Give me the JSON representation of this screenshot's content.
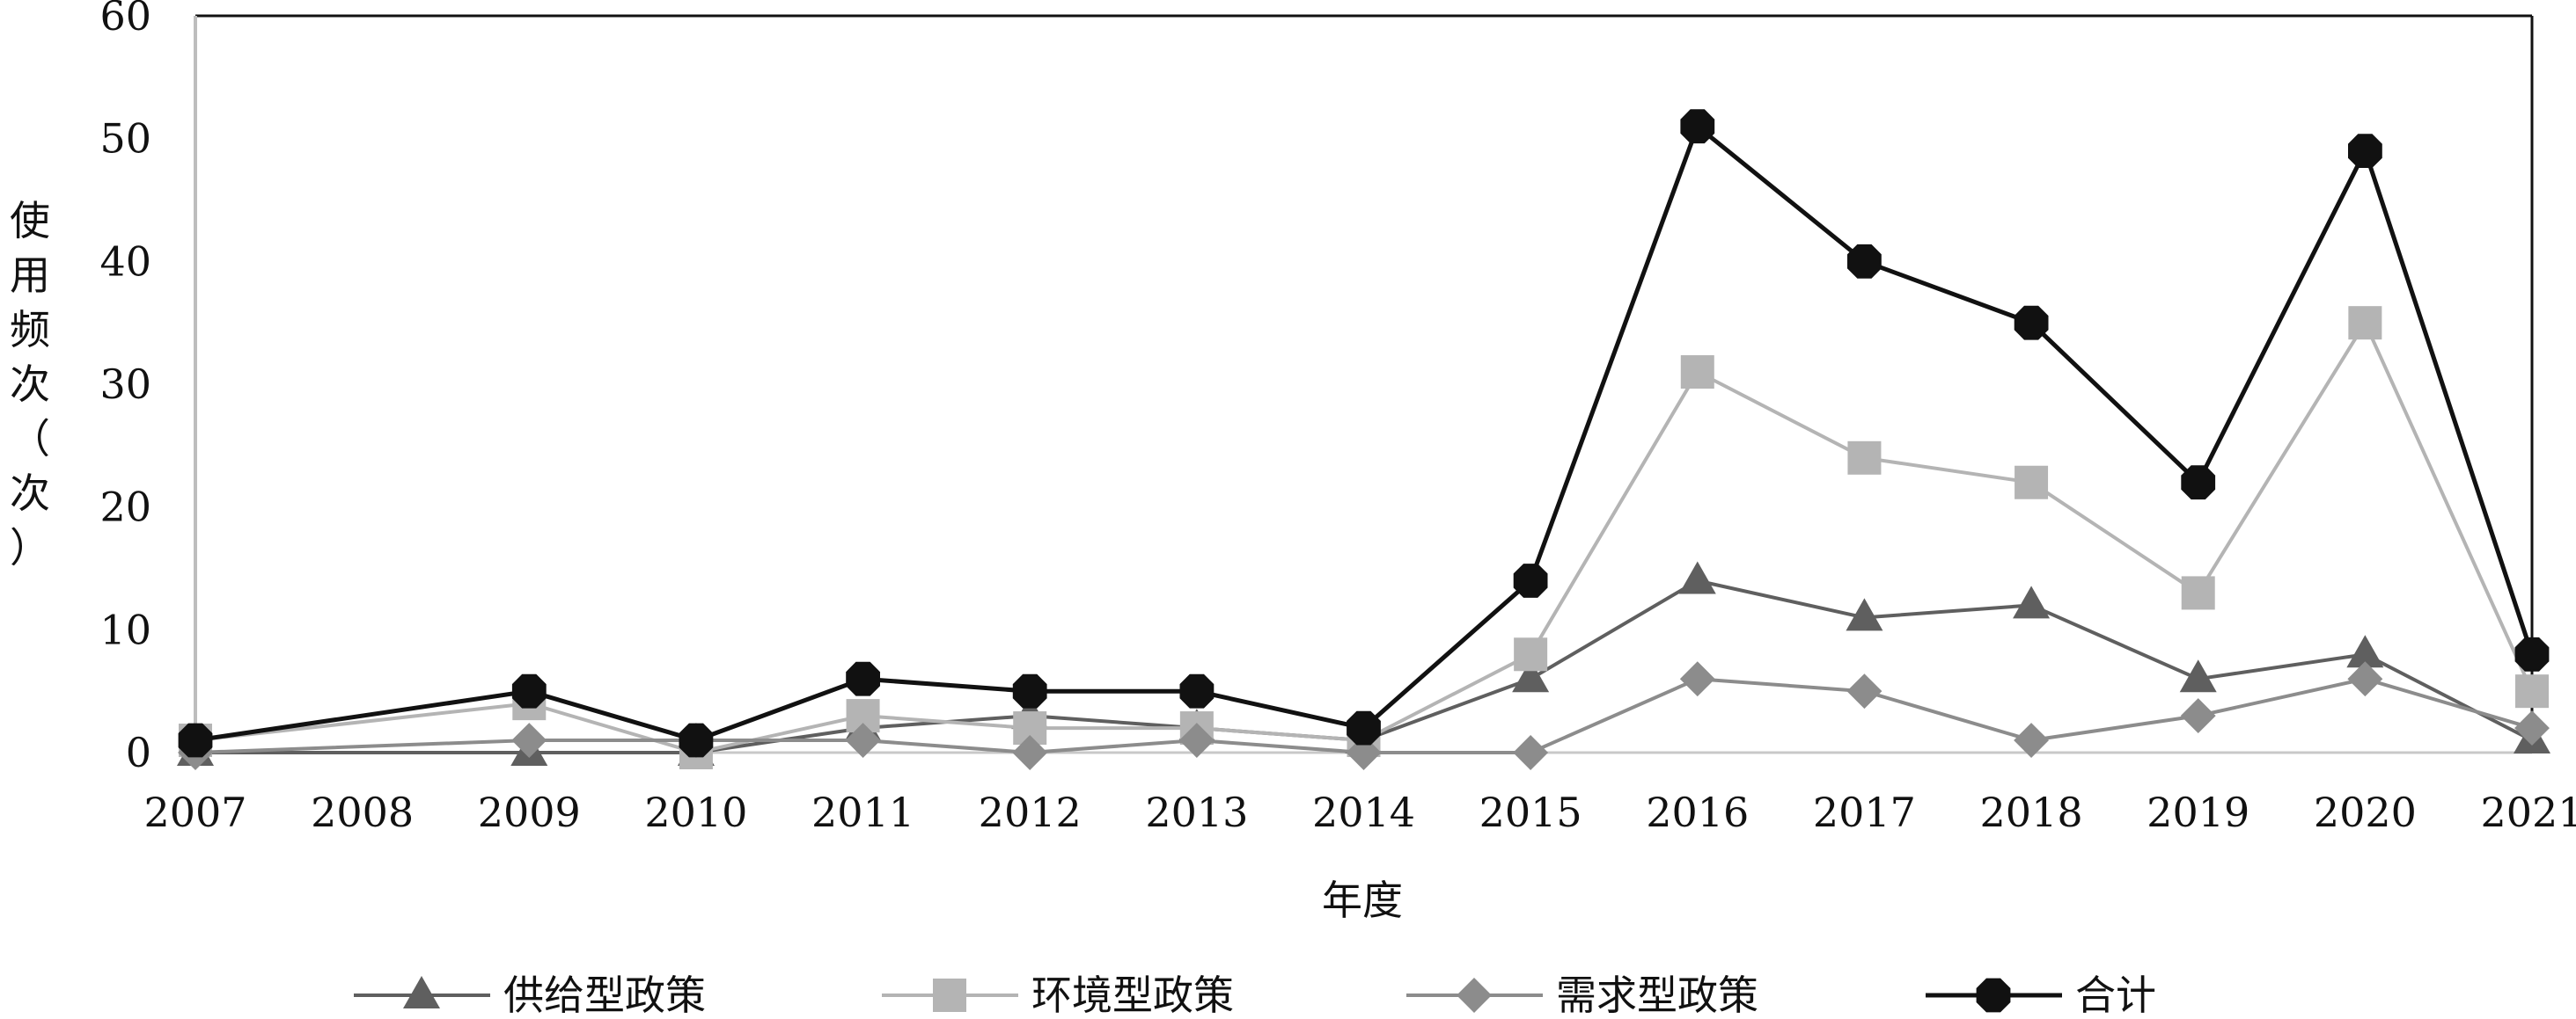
{
  "chart_data": {
    "type": "line",
    "title": "",
    "xlabel": "年度",
    "ylabel": "使用频次（次）",
    "ylim": [
      0,
      60
    ],
    "yticks": [
      0,
      10,
      20,
      30,
      40,
      50,
      60
    ],
    "grid": false,
    "legend_position": "bottom",
    "x": [
      "2007",
      "2008",
      "2009",
      "2010",
      "2011",
      "2012",
      "2013",
      "2014",
      "2015",
      "2016",
      "2017",
      "2018",
      "2019",
      "2020",
      "2021"
    ],
    "series": [
      {
        "name": "供给型政策",
        "color": "#5f5f5f",
        "marker": "triangle",
        "points": [
          [
            0,
            0
          ],
          [
            2,
            0
          ],
          [
            3,
            0
          ],
          [
            4,
            2
          ],
          [
            5,
            3
          ],
          [
            6,
            2
          ],
          [
            7,
            1
          ],
          [
            8,
            6
          ],
          [
            9,
            14
          ],
          [
            10,
            11
          ],
          [
            11,
            12
          ],
          [
            12,
            6
          ],
          [
            13,
            8
          ],
          [
            14,
            1
          ]
        ]
      },
      {
        "name": "环境型政策",
        "color": "#b4b4b4",
        "marker": "square",
        "points": [
          [
            0,
            1
          ],
          [
            2,
            4
          ],
          [
            3,
            0
          ],
          [
            4,
            3
          ],
          [
            5,
            2
          ],
          [
            6,
            2
          ],
          [
            7,
            1
          ],
          [
            8,
            8
          ],
          [
            9,
            31
          ],
          [
            10,
            24
          ],
          [
            11,
            22
          ],
          [
            12,
            13
          ],
          [
            13,
            35
          ],
          [
            14,
            5
          ]
        ]
      },
      {
        "name": "需求型政策",
        "color": "#8c8c8c",
        "marker": "diamond",
        "points": [
          [
            0,
            0
          ],
          [
            2,
            1
          ],
          [
            3,
            1
          ],
          [
            4,
            1
          ],
          [
            5,
            0
          ],
          [
            6,
            1
          ],
          [
            7,
            0
          ],
          [
            8,
            0
          ],
          [
            9,
            6
          ],
          [
            10,
            5
          ],
          [
            11,
            1
          ],
          [
            12,
            3
          ],
          [
            13,
            6
          ],
          [
            14,
            2
          ]
        ]
      },
      {
        "name": "合计",
        "color": "#111111",
        "marker": "octagon",
        "points": [
          [
            0,
            1
          ],
          [
            2,
            5
          ],
          [
            3,
            1
          ],
          [
            4,
            6
          ],
          [
            5,
            5
          ],
          [
            6,
            5
          ],
          [
            7,
            2
          ],
          [
            8,
            14
          ],
          [
            9,
            51
          ],
          [
            10,
            40
          ],
          [
            11,
            35
          ],
          [
            12,
            22
          ],
          [
            13,
            49
          ],
          [
            14,
            8
          ]
        ]
      }
    ]
  }
}
